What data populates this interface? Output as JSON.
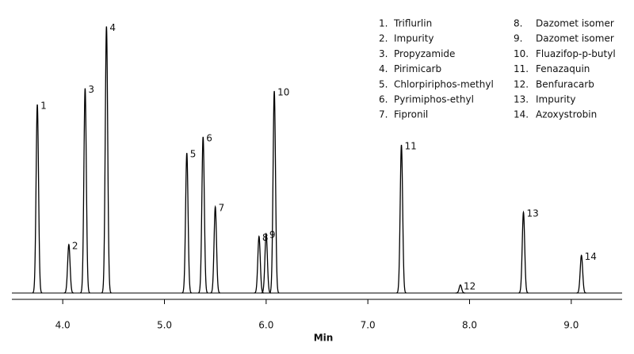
{
  "chart_data": {
    "type": "line",
    "x_label": "Min",
    "x": [
      3.75,
      4.06,
      4.22,
      4.43,
      5.22,
      5.38,
      5.5,
      5.93,
      6.0,
      6.08,
      7.33,
      7.91,
      8.53,
      9.1
    ],
    "values": [
      70,
      18,
      76,
      99,
      52,
      58,
      32,
      21,
      22,
      75,
      55,
      3,
      30,
      14
    ],
    "peak_labels": [
      "1",
      "2",
      "3",
      "4",
      "5",
      "6",
      "7",
      "8",
      "9",
      "10",
      "11",
      "12",
      "13",
      "14"
    ],
    "color": "#000000",
    "xlim": [
      3.5,
      9.5
    ],
    "xticks": [
      {
        "value": 4,
        "label": "4.0"
      },
      {
        "value": 5,
        "label": "5.0"
      },
      {
        "value": 6,
        "label": "6.0"
      },
      {
        "value": 7,
        "label": "7.0"
      },
      {
        "value": 8,
        "label": "8.0"
      },
      {
        "value": 9,
        "label": "9.0"
      }
    ],
    "ylim": [
      0,
      100
    ],
    "legend": [
      {
        "number": "1.",
        "name": "Triflurlin"
      },
      {
        "number": "2.",
        "name": "Impurity"
      },
      {
        "number": "3.",
        "name": "Propyzamide"
      },
      {
        "number": "4.",
        "name": "Pirimicarb"
      },
      {
        "number": "5.",
        "name": "Chlorpiriphos-methyl"
      },
      {
        "number": "6.",
        "name": "Pyrimiphos-ethyl"
      },
      {
        "number": "7.",
        "name": "Fipronil"
      },
      {
        "number": "8.",
        "name": "Dazomet isomer"
      },
      {
        "number": "9.",
        "name": "Dazomet isomer"
      },
      {
        "number": "10.",
        "name": "Fluazifop-p-butyl"
      },
      {
        "number": "11.",
        "name": "Fenazaquin"
      },
      {
        "number": "12.",
        "name": "Benfuracarb"
      },
      {
        "number": "13.",
        "name": "Impurity"
      },
      {
        "number": "14.",
        "name": "Azoxystrobin"
      }
    ]
  }
}
